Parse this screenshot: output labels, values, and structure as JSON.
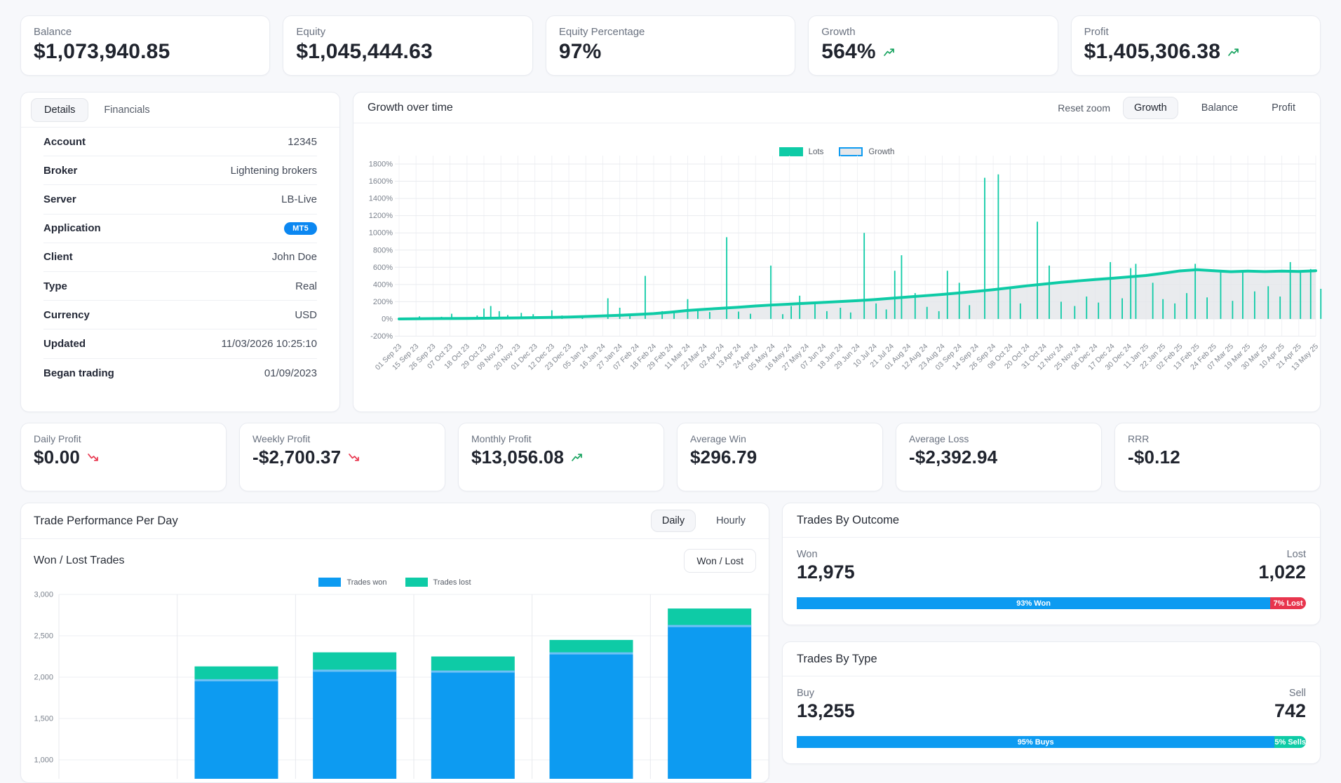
{
  "colors": {
    "teal": "#0ecba6",
    "blue": "#0d9bf1",
    "red": "#e8354d",
    "green": "#17a35f",
    "badge_blue": "#0b87f1",
    "blue_cap": "#6ec1f5"
  },
  "top_cards": [
    {
      "label": "Balance",
      "value": "$1,073,940.85",
      "trend": "none"
    },
    {
      "label": "Equity",
      "value": "$1,045,444.63",
      "trend": "none"
    },
    {
      "label": "Equity Percentage",
      "value": "97%",
      "trend": "none"
    },
    {
      "label": "Growth",
      "value": "564%",
      "trend": "up"
    },
    {
      "label": "Profit",
      "value": "$1,405,306.38",
      "trend": "up"
    }
  ],
  "details_panel": {
    "tabs": [
      {
        "label": "Details"
      },
      {
        "label": "Financials"
      }
    ],
    "rows": [
      {
        "label": "Account",
        "value": "12345"
      },
      {
        "label": "Broker",
        "value": "Lightening brokers"
      },
      {
        "label": "Server",
        "value": "LB-Live"
      },
      {
        "label": "Application",
        "value": "MT5"
      },
      {
        "label": "Client",
        "value": "John Doe"
      },
      {
        "label": "Type",
        "value": "Real"
      },
      {
        "label": "Currency",
        "value": "USD"
      },
      {
        "label": "Updated",
        "value": "11/03/2026 10:25:10"
      },
      {
        "label": "Began trading",
        "value": "01/09/2023"
      }
    ]
  },
  "growth_panel": {
    "title": "Growth over time",
    "reset_label": "Reset zoom",
    "buttons": [
      {
        "label": "Growth"
      },
      {
        "label": "Balance"
      },
      {
        "label": "Profit"
      }
    ],
    "legend": [
      {
        "label": "Lots"
      },
      {
        "label": "Growth"
      }
    ]
  },
  "stat_cards": [
    {
      "label": "Daily Profit",
      "value": "$0.00",
      "trend": "down"
    },
    {
      "label": "Weekly Profit",
      "value": "-$2,700.37",
      "trend": "down"
    },
    {
      "label": "Monthly Profit",
      "value": "$13,056.08",
      "trend": "up"
    },
    {
      "label": "Average Win",
      "value": "$296.79",
      "trend": "none"
    },
    {
      "label": "Average Loss",
      "value": "-$2,392.94",
      "trend": "none"
    },
    {
      "label": "RRR",
      "value": "-$0.12",
      "trend": "none"
    }
  ],
  "trade_performance": {
    "title": "Trade Performance Per Day",
    "mode_buttons": [
      {
        "label": "Daily"
      },
      {
        "label": "Hourly"
      }
    ],
    "subtitle": "Won / Lost Trades",
    "filter_button": "Won / Lost",
    "legend": [
      {
        "label": "Trades won"
      },
      {
        "label": "Trades lost"
      }
    ]
  },
  "trades_by_outcome": {
    "title": "Trades By Outcome",
    "left_label": "Won",
    "left_value": "12,975",
    "right_label": "Lost",
    "right_value": "1,022",
    "bar": {
      "left_pct": 93,
      "left_text": "93% Won",
      "right_text": "7% Lost"
    }
  },
  "trades_by_type": {
    "title": "Trades By Type",
    "left_label": "Buy",
    "left_value": "13,255",
    "right_label": "Sell",
    "right_value": "742",
    "bar": {
      "left_pct": 95,
      "left_text": "95% Buys",
      "right_text": "5% Sells"
    }
  },
  "chart_data": [
    {
      "type": "line",
      "title": "Growth over time",
      "legend": [
        "Lots",
        "Growth"
      ],
      "ylim": [
        -200,
        1800
      ],
      "y_ticks": [
        "1800%",
        "1600%",
        "1400%",
        "1200%",
        "1000%",
        "800%",
        "600%",
        "400%",
        "200%",
        "0%",
        "-200%"
      ],
      "x_labels": [
        "01 Sep 23",
        "15 Sep 23",
        "26 Sep 23",
        "07 Oct 23",
        "18 Oct 23",
        "29 Oct 23",
        "09 Nov 23",
        "20 Nov 23",
        "01 Dec 23",
        "12 Dec 23",
        "23 Dec 23",
        "05 Jan 24",
        "16 Jan 24",
        "27 Jan 24",
        "07 Feb 24",
        "18 Feb 24",
        "29 Feb 24",
        "11 Mar 24",
        "22 Mar 24",
        "02 Apr 24",
        "13 Apr 24",
        "24 Apr 24",
        "05 May 24",
        "16 May 24",
        "27 May 24",
        "07 Jun 24",
        "18 Jun 24",
        "29 Jun 24",
        "10 Jul 24",
        "21 Jul 24",
        "01 Aug 24",
        "12 Aug 24",
        "23 Aug 24",
        "03 Sep 24",
        "14 Sep 24",
        "26 Sep 24",
        "08 Oct 24",
        "20 Oct 24",
        "31 Oct 24",
        "12 Nov 24",
        "25 Nov 24",
        "06 Dec 24",
        "17 Dec 24",
        "30 Dec 24",
        "11 Jan 25",
        "22 Jan 25",
        "02 Feb 25",
        "13 Feb 25",
        "24 Feb 25",
        "07 Mar 25",
        "19 Mar 25",
        "30 Mar 25",
        "10 Apr 25",
        "21 Apr 25",
        "13 May 25"
      ],
      "growth_line_pct": [
        0,
        2,
        4,
        5,
        6,
        8,
        10,
        12,
        15,
        18,
        22,
        28,
        35,
        42,
        52,
        62,
        78,
        98,
        112,
        124,
        136,
        150,
        162,
        172,
        182,
        192,
        202,
        212,
        225,
        240,
        255,
        270,
        285,
        302,
        320,
        340,
        362,
        385,
        405,
        425,
        442,
        458,
        472,
        488,
        505,
        530,
        558,
        572,
        560,
        548,
        556,
        550,
        556,
        552,
        560
      ],
      "lots_spikes": [
        [
          1.2,
          30
        ],
        [
          2.5,
          25
        ],
        [
          3.1,
          60
        ],
        [
          4.6,
          40
        ],
        [
          5.0,
          120
        ],
        [
          5.4,
          150
        ],
        [
          5.9,
          90
        ],
        [
          6.4,
          45
        ],
        [
          7.2,
          70
        ],
        [
          7.9,
          55
        ],
        [
          9.0,
          100
        ],
        [
          9.6,
          40
        ],
        [
          10.8,
          35
        ],
        [
          12.3,
          240
        ],
        [
          13.0,
          130
        ],
        [
          13.6,
          60
        ],
        [
          14.5,
          500
        ],
        [
          15.5,
          90
        ],
        [
          16.2,
          70
        ],
        [
          17.0,
          230
        ],
        [
          17.6,
          120
        ],
        [
          18.3,
          80
        ],
        [
          19.3,
          950
        ],
        [
          20.0,
          85
        ],
        [
          20.7,
          60
        ],
        [
          21.9,
          620
        ],
        [
          22.6,
          55
        ],
        [
          23.1,
          150
        ],
        [
          23.6,
          270
        ],
        [
          24.5,
          200
        ],
        [
          25.2,
          90
        ],
        [
          26.0,
          130
        ],
        [
          26.6,
          75
        ],
        [
          27.4,
          1000
        ],
        [
          28.1,
          180
        ],
        [
          28.7,
          110
        ],
        [
          29.2,
          560
        ],
        [
          29.6,
          740
        ],
        [
          30.4,
          300
        ],
        [
          31.1,
          140
        ],
        [
          31.8,
          90
        ],
        [
          32.3,
          560
        ],
        [
          33.0,
          420
        ],
        [
          33.6,
          160
        ],
        [
          34.5,
          1640
        ],
        [
          35.3,
          1680
        ],
        [
          36.0,
          350
        ],
        [
          36.6,
          180
        ],
        [
          37.6,
          1130
        ],
        [
          38.3,
          620
        ],
        [
          39.0,
          200
        ],
        [
          39.8,
          150
        ],
        [
          40.5,
          260
        ],
        [
          41.2,
          190
        ],
        [
          41.9,
          660
        ],
        [
          42.6,
          240
        ],
        [
          43.1,
          590
        ],
        [
          43.4,
          640
        ],
        [
          44.4,
          420
        ],
        [
          45.0,
          230
        ],
        [
          45.7,
          180
        ],
        [
          46.4,
          300
        ],
        [
          46.9,
          640
        ],
        [
          47.6,
          250
        ],
        [
          48.4,
          570
        ],
        [
          49.1,
          210
        ],
        [
          49.7,
          555
        ],
        [
          50.4,
          320
        ],
        [
          51.2,
          380
        ],
        [
          51.9,
          260
        ],
        [
          52.5,
          660
        ],
        [
          53.1,
          550
        ],
        [
          53.7,
          580
        ],
        [
          54.3,
          350
        ]
      ]
    },
    {
      "type": "bar",
      "title": "Won / Lost Trades",
      "stacked": true,
      "columns": 6,
      "y_ticks": [
        "3,000",
        "2,500",
        "2,000",
        "1,500",
        "1,000"
      ],
      "ylim_visible": [
        1000,
        3000
      ],
      "series": [
        {
          "name": "Trades won",
          "color": "blue",
          "values": [
            0,
            1975,
            2090,
            2080,
            2300,
            2630
          ]
        },
        {
          "name": "Trades lost",
          "color": "teal",
          "values": [
            0,
            155,
            210,
            170,
            150,
            200
          ]
        }
      ]
    }
  ]
}
